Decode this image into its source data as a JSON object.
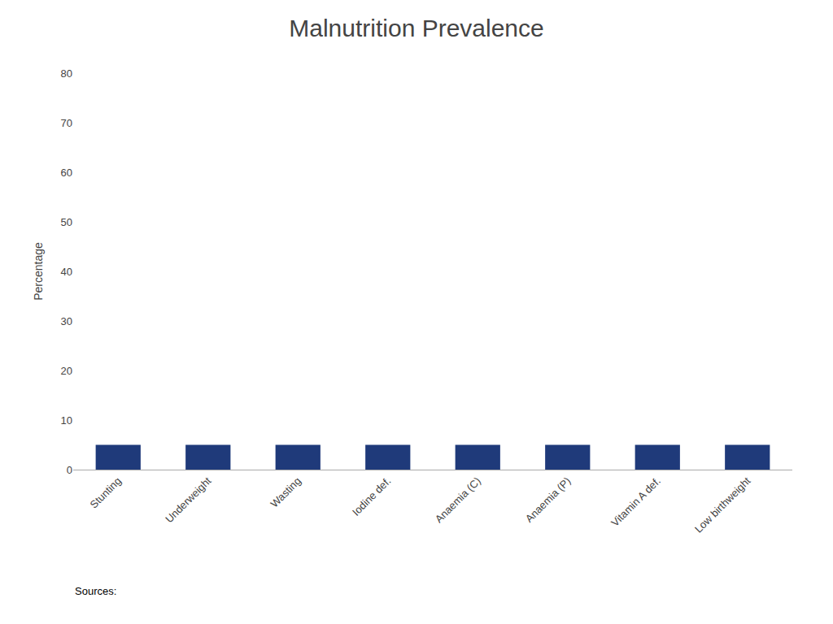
{
  "chart_data": {
    "type": "bar",
    "title": "Malnutrition Prevalence",
    "categories": [
      "Stunting",
      "Underweight",
      "Wasting",
      "Iodine def.",
      "Anaemia (C)",
      "Anaemia (P)",
      "Vitamin A def.",
      "Low birthweight"
    ],
    "values": [
      5.0,
      5.0,
      5.0,
      5.0,
      5.0,
      5.0,
      5.0,
      5.0
    ],
    "color": "#1F3A7A",
    "ylabel": "Percentage",
    "ylim": [
      0,
      80
    ],
    "yticks": [
      0,
      10,
      20,
      30,
      40,
      50,
      60,
      70,
      80
    ],
    "grid": false,
    "annotations": [
      "Sources:"
    ]
  }
}
